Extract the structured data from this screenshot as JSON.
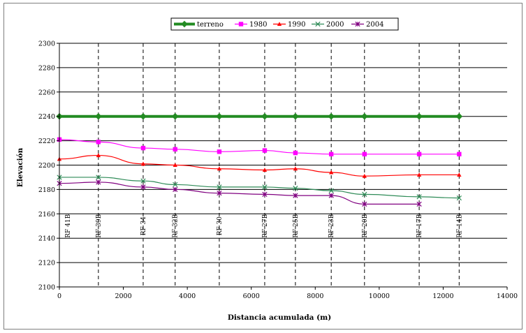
{
  "chart_data": {
    "type": "line",
    "title": "",
    "xlabel": "Distancia acumulada (m)",
    "ylabel": "Elevación",
    "xlim": [
      0,
      14000
    ],
    "ylim": [
      2100,
      2300
    ],
    "xticks": [
      0,
      2000,
      4000,
      6000,
      8000,
      10000,
      12000,
      14000
    ],
    "yticks": [
      2100,
      2120,
      2140,
      2160,
      2180,
      2200,
      2220,
      2240,
      2260,
      2280,
      2300
    ],
    "grid": "horizontal",
    "legend_position": "top",
    "stations": [
      {
        "label": "RF 41B",
        "x": 0
      },
      {
        "label": "RF 39B",
        "x": 1220
      },
      {
        "label": "RF 34",
        "x": 2620
      },
      {
        "label": "RF 32B",
        "x": 3620
      },
      {
        "label": "RF 30",
        "x": 5000
      },
      {
        "label": "RF 27B",
        "x": 6420
      },
      {
        "label": "RF 25B",
        "x": 7380
      },
      {
        "label": "RF 23B",
        "x": 8500
      },
      {
        "label": "RF 20B",
        "x": 9540
      },
      {
        "label": "RF 17B",
        "x": 11250
      },
      {
        "label": "RF 14B",
        "x": 12500
      }
    ],
    "series": [
      {
        "name": "terreno",
        "color": "#228B22",
        "marker": "diamond",
        "x": [
          0,
          1220,
          2620,
          3620,
          5000,
          6420,
          7380,
          8500,
          9540,
          11250,
          12500
        ],
        "y": [
          2240,
          2240,
          2240,
          2240,
          2240,
          2240,
          2240,
          2240,
          2240,
          2240,
          2240
        ]
      },
      {
        "name": "1980",
        "color": "#FF00FF",
        "marker": "square",
        "x": [
          0,
          1220,
          2620,
          3620,
          5000,
          6420,
          7380,
          8500,
          9540,
          11250,
          12500
        ],
        "y": [
          2221,
          2219,
          2214,
          2213,
          2211,
          2212,
          2210,
          2209,
          2209,
          2209,
          2209
        ]
      },
      {
        "name": "1990",
        "color": "#FF0000",
        "marker": "triangle",
        "x": [
          0,
          1220,
          2620,
          3620,
          5000,
          6420,
          7380,
          8500,
          9540,
          11250,
          12500
        ],
        "y": [
          2205,
          2208,
          2201,
          2200,
          2197,
          2196,
          2197,
          2194,
          2191,
          2192,
          2192
        ]
      },
      {
        "name": "2000",
        "color": "#2E8B57",
        "marker": "x",
        "x": [
          0,
          1220,
          2620,
          3620,
          5000,
          6420,
          7380,
          8500,
          9540,
          11250,
          12500
        ],
        "y": [
          2190,
          2190,
          2187,
          2184,
          2182,
          2182,
          2181,
          2179,
          2176,
          2174,
          2173
        ]
      },
      {
        "name": "2004",
        "color": "#800080",
        "marker": "star",
        "x": [
          0,
          1220,
          2620,
          3620,
          5000,
          6420,
          7380,
          8500,
          9540,
          11250
        ],
        "y": [
          2185,
          2186,
          2182,
          2180,
          2177,
          2176,
          2175,
          2175,
          2168,
          2168
        ]
      }
    ]
  }
}
